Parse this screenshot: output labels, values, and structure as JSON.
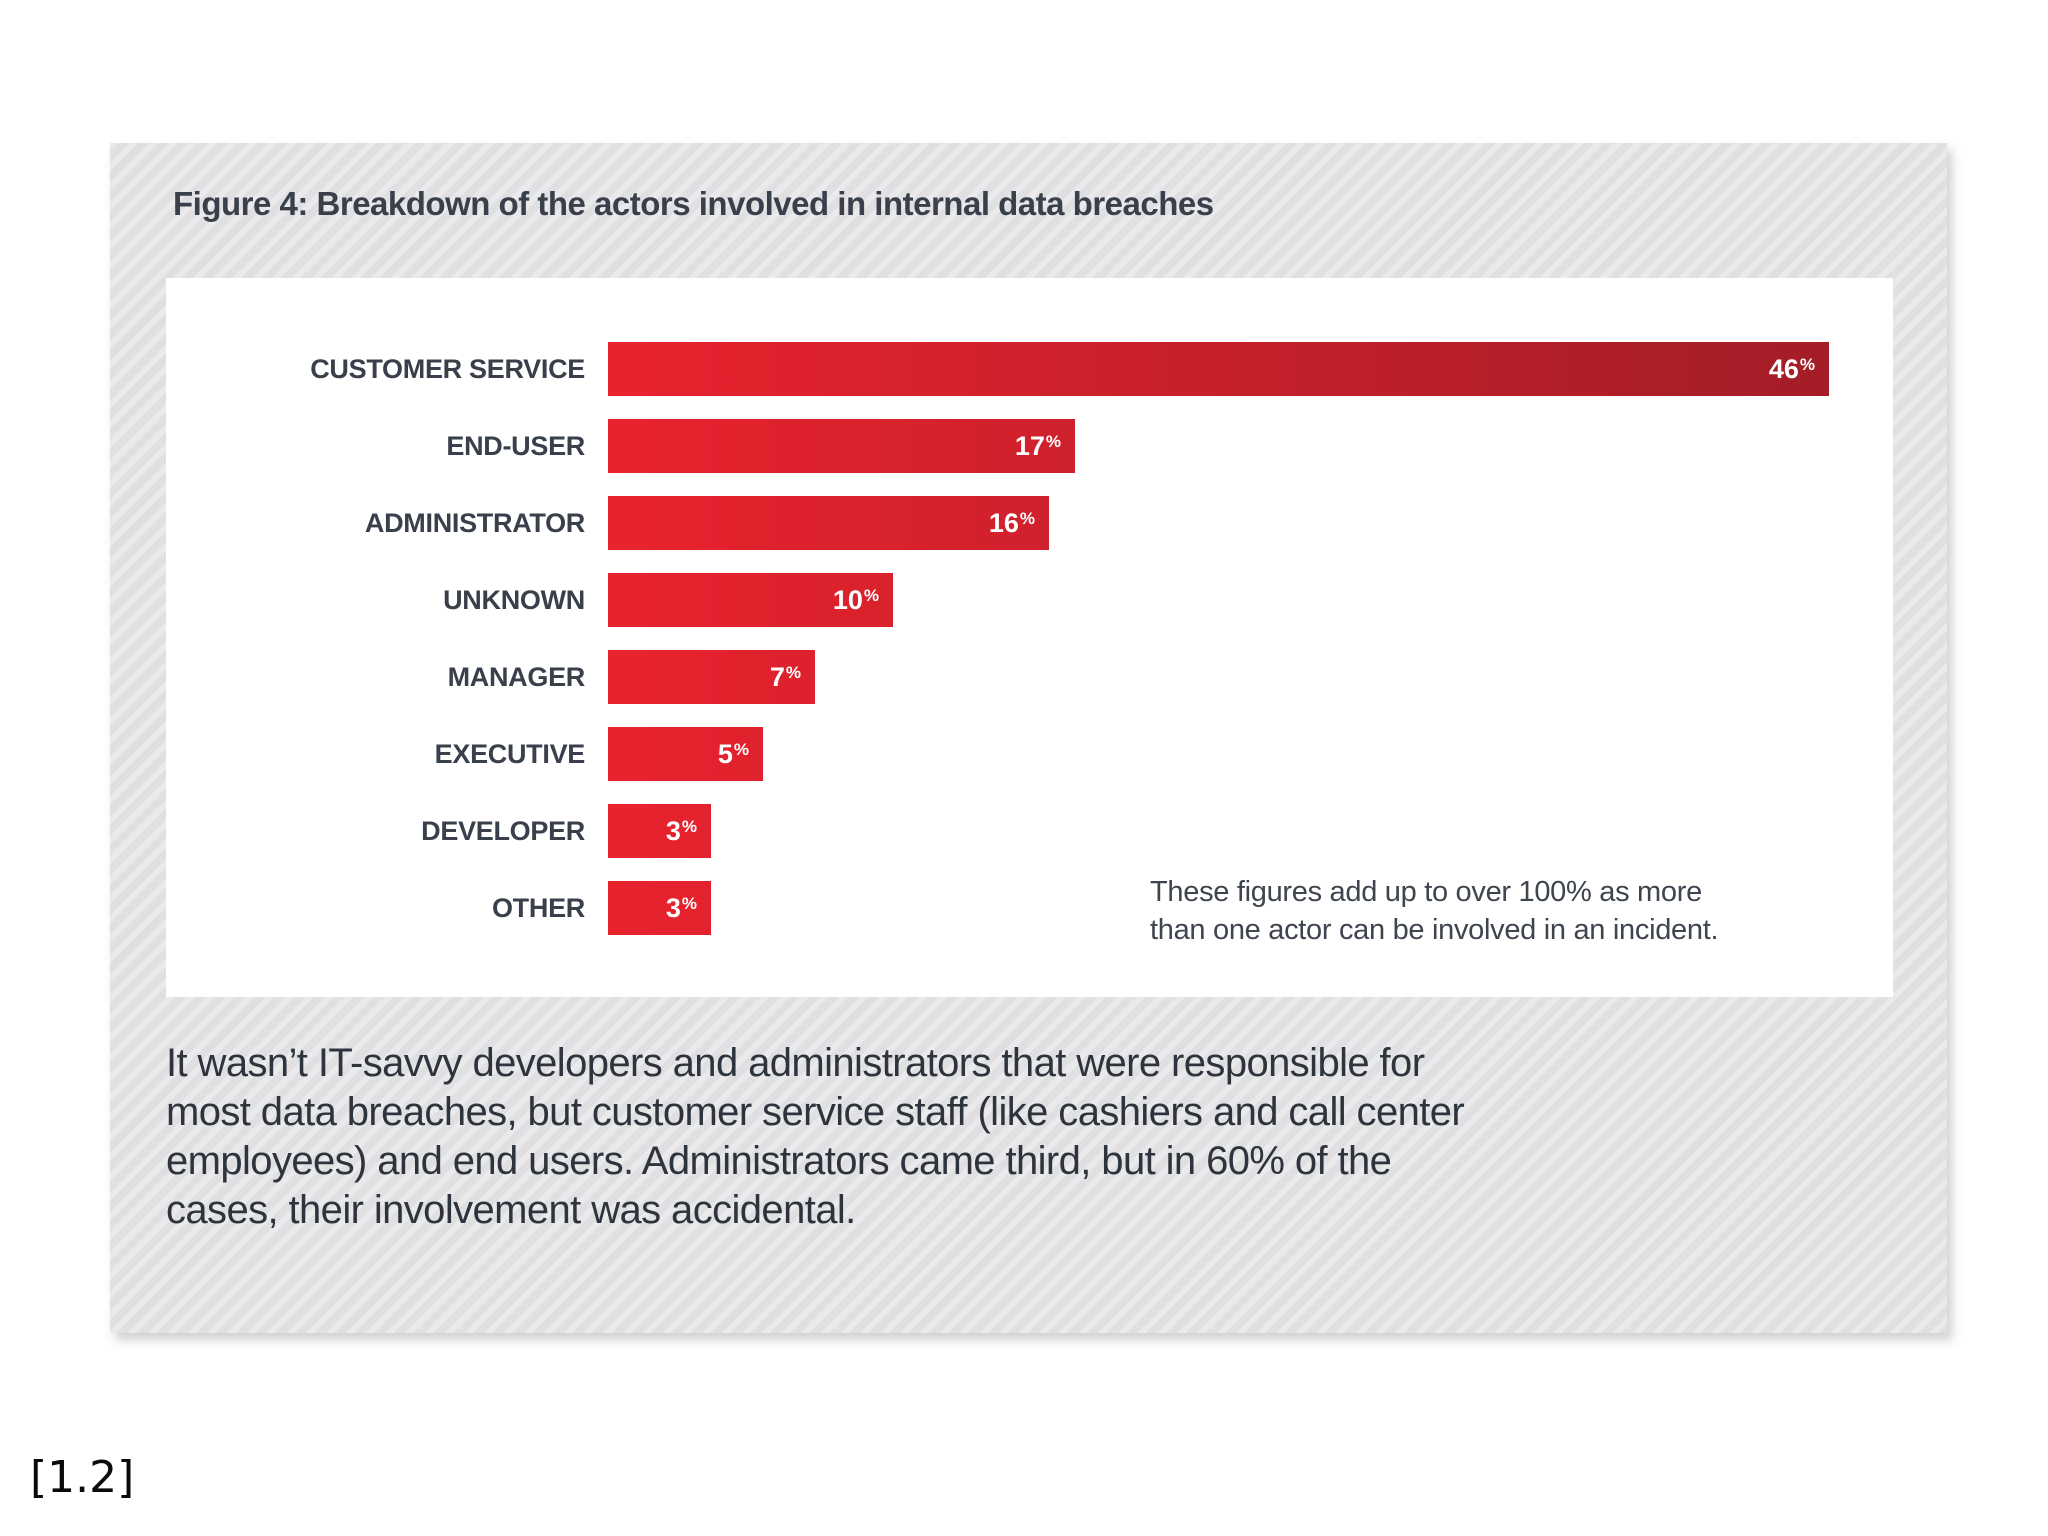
{
  "figure": {
    "title": "Figure 4: Breakdown of the actors involved in internal data breaches",
    "note_lines": [
      "These figures add up to over 100% as more",
      "than one actor can be involved in an incident."
    ],
    "caption_lines": [
      "It wasn’t IT-savvy developers and administrators that were responsible for",
      "most data breaches, but customer service staff (like cashiers and call center",
      "employees) and end users. Administrators came third, but in 60% of the",
      "cases, their involvement was accidental."
    ],
    "footnote": "[1.2]"
  },
  "chart_data": {
    "type": "bar",
    "orientation": "horizontal",
    "title": "Figure 4: Breakdown of the actors involved in internal data breaches",
    "categories": [
      "CUSTOMER SERVICE",
      "END-USER",
      "ADMINISTRATOR",
      "UNKNOWN",
      "MANAGER",
      "EXECUTIVE",
      "DEVELOPER",
      "OTHER"
    ],
    "values": [
      46,
      17,
      16,
      10,
      7,
      5,
      3,
      3
    ],
    "value_suffix": "%",
    "value_label_position": "inside-end",
    "annotation": "These figures add up to over 100% as more than one actor can be involved in an incident.",
    "xlabel": "",
    "ylabel": "",
    "axes_visible": false,
    "grid": false,
    "legend": "none",
    "bar_color_start": "#e8232e",
    "bar_color_end": "#a31d27",
    "value_label_color": "#ffffff",
    "category_label_color": "#39404b"
  }
}
